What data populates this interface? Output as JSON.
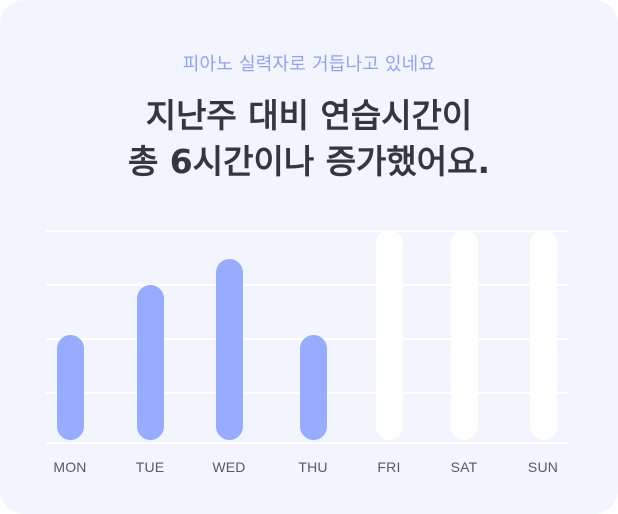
{
  "card": {
    "subtitle": "피아노 실력자로 거듭나고 있네요",
    "headline_line1": "지난주 대비 연습시간이",
    "headline_line2": "총 6시간이나 증가했어요."
  },
  "colors": {
    "filled_bar": "#97abff",
    "empty_bar": "#ffffff",
    "subtitle": "#8fa3ef",
    "headline": "#33373f",
    "card_background": "#f2f5fd"
  },
  "chart_data": {
    "type": "bar",
    "categories": [
      "MON",
      "TUE",
      "WED",
      "THU",
      "FRI",
      "SAT",
      "SUN"
    ],
    "values": [
      0.5,
      0.74,
      0.86,
      0.5,
      null,
      null,
      null
    ],
    "ylim": [
      0,
      1
    ],
    "grid": true,
    "legend": "none"
  }
}
